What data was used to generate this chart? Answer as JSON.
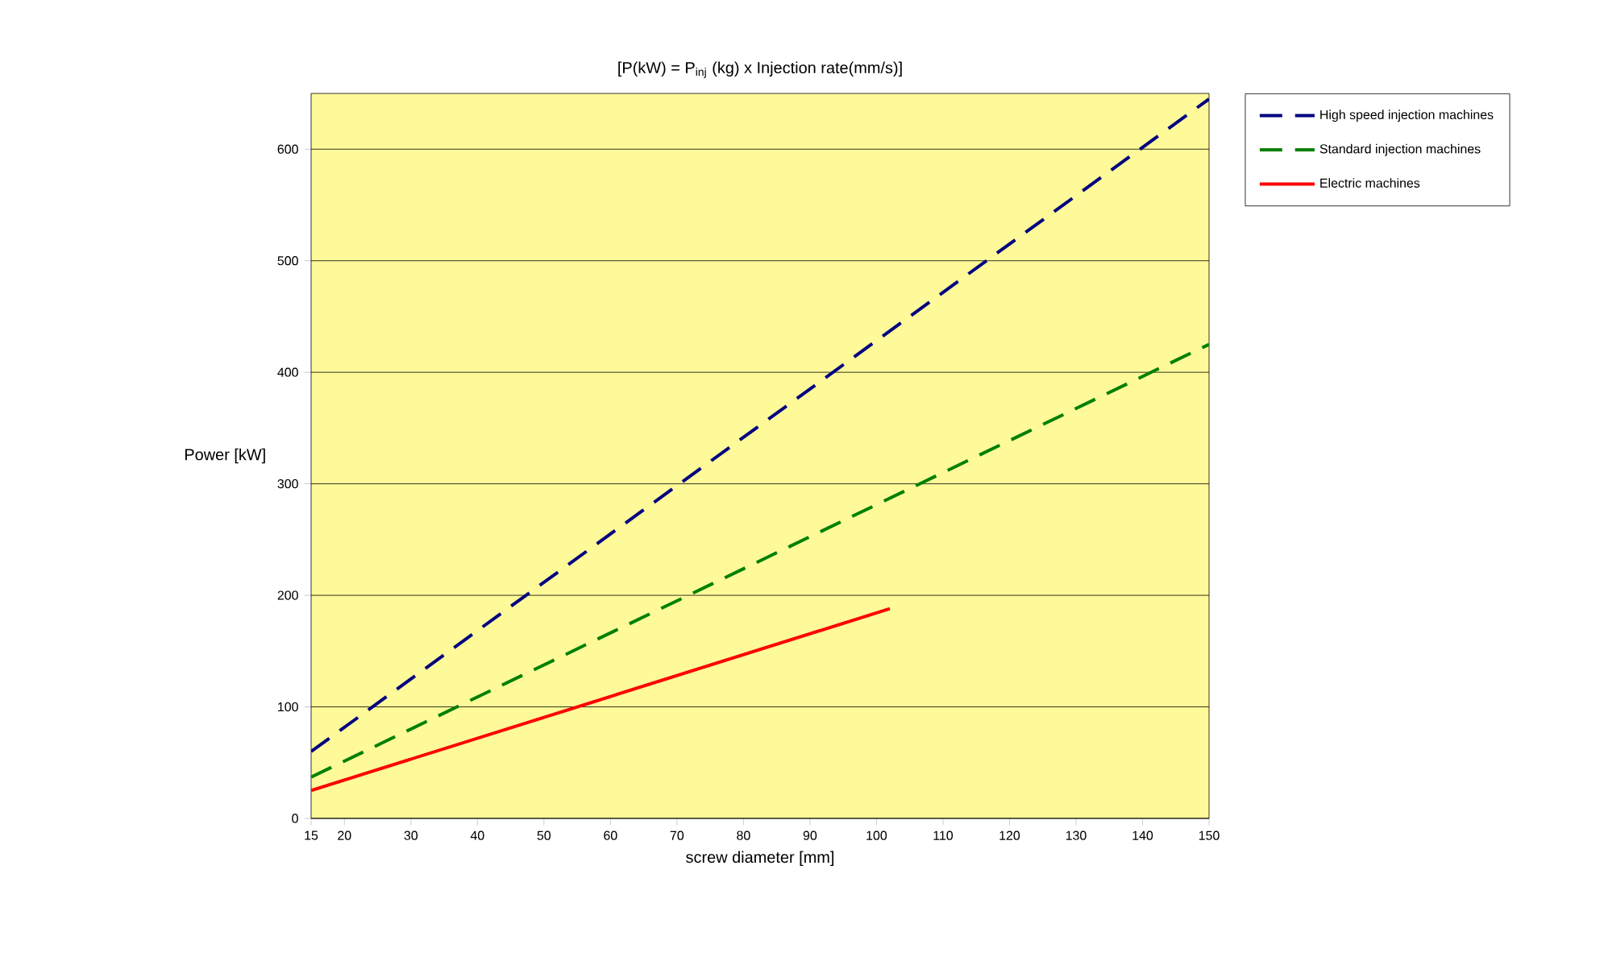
{
  "chart_data": {
    "type": "line",
    "title": "[P(kW) = P$_{inj}$ (kg) x Injection rate(mm/s)]",
    "xlabel": "screw diameter [mm]",
    "ylabel": "Power [kW]",
    "xlim": [
      15,
      150
    ],
    "ylim": [
      0,
      650
    ],
    "xticks": [
      15,
      20,
      30,
      40,
      50,
      60,
      70,
      80,
      90,
      100,
      110,
      120,
      130,
      140,
      150
    ],
    "yticks": [
      0,
      100,
      200,
      300,
      400,
      500,
      600
    ],
    "grid": "y",
    "legend": "right",
    "series": [
      {
        "name": "High speed injection machines",
        "color": "#000080",
        "line_style": "dashed",
        "x": [
          15,
          150
        ],
        "values": [
          60,
          645
        ]
      },
      {
        "name": "Standard injection machines",
        "color": "#008000",
        "line_style": "dashed",
        "x": [
          15,
          150
        ],
        "values": [
          37,
          425
        ]
      },
      {
        "name": "Electric machines",
        "color": "#ff0000",
        "line_style": "solid",
        "x": [
          15,
          102
        ],
        "values": [
          25,
          188
        ]
      }
    ]
  }
}
